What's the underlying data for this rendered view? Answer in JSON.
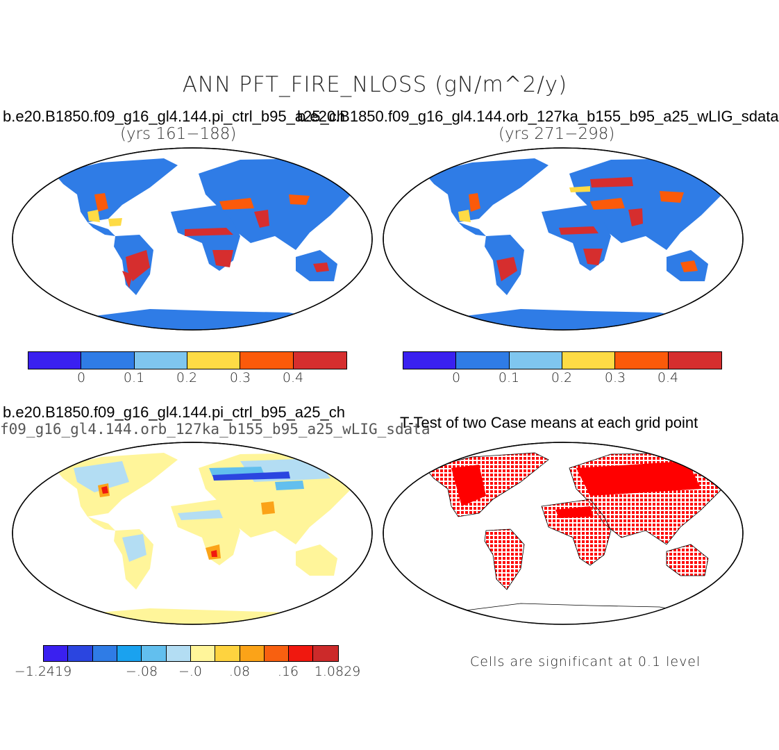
{
  "main_title": "ANN PFT_FIRE_NLOSS (gN/m^2/y)",
  "panel1": {
    "title": "b.e20.B1850.f09_g16_gl4.144.pi_ctrl_b95_a25_ch",
    "years": "(yrs 161−188)",
    "colorbar": {
      "colors": [
        "#3a20f0",
        "#2f7ce6",
        "#7fc6ef",
        "#fedb45",
        "#fb5a0a",
        "#d62e2e"
      ],
      "ticks": [
        "0",
        "0.1",
        "0.2",
        "0.3",
        "0.4"
      ]
    }
  },
  "panel2": {
    "title": "b.e20.B1850.f09_g16_gl4.144.orb_127ka_b155_b95_a25_wLIG_sdata",
    "years": "(yrs 271−298)",
    "colorbar": {
      "colors": [
        "#3a20f0",
        "#2f7ce6",
        "#7fc6ef",
        "#fedb45",
        "#fb5a0a",
        "#d62e2e"
      ],
      "ticks": [
        "0",
        "0.1",
        "0.2",
        "0.3",
        "0.4"
      ]
    }
  },
  "panel3": {
    "title": "b.e20.B1850.f09_g16_gl4.144.pi_ctrl_b95_a25_ch",
    "subtitle": "f09_g16_gl4.144.orb_127ka_b155_b95_a25_wLIG_sdata",
    "colorbar": {
      "colors": [
        "#3a20f0",
        "#2b45e0",
        "#2f7ce6",
        "#1aa2ef",
        "#62bfee",
        "#b3ddf3",
        "#fff59a",
        "#fed33f",
        "#fba318",
        "#f86010",
        "#f0180f",
        "#cc2a2a"
      ],
      "ticks": [
        "−1.2419",
        "−.08",
        "−.0",
        ".08",
        ".16",
        "1.0829"
      ]
    }
  },
  "panel4": {
    "title": "T-Test of two Case means at each grid point",
    "note": "Cells are significant at 0.1 level",
    "marker_color": "#ff0000"
  }
}
